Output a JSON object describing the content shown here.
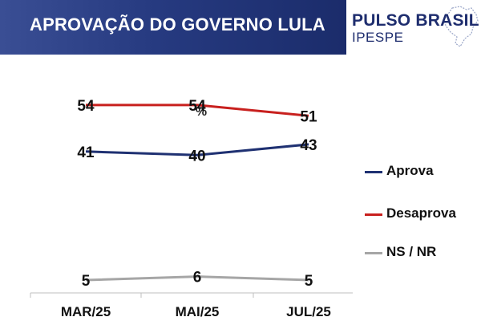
{
  "header": {
    "title": "APROVAÇÃO DO GOVERNO LULA"
  },
  "brand": {
    "line1": "PULSO BRASIL",
    "line2": "IPESPE"
  },
  "colors": {
    "header_bg": "#263a80",
    "brand_text": "#1e2d6e"
  },
  "chart_data": {
    "type": "line",
    "unit_label": "%",
    "categories": [
      "MAR/25",
      "MAI/25",
      "JUL/25"
    ],
    "series": [
      {
        "name": "Aprova",
        "values": [
          41,
          40,
          43
        ],
        "color": "#1f3172"
      },
      {
        "name": "Desaprova",
        "values": [
          54,
          54,
          51
        ],
        "color": "#c8201e"
      },
      {
        "name": "NS / NR",
        "values": [
          5,
          6,
          5
        ],
        "color": "#a6a6a6"
      }
    ],
    "data_labels": true,
    "grid": false,
    "legend_position": "right"
  }
}
